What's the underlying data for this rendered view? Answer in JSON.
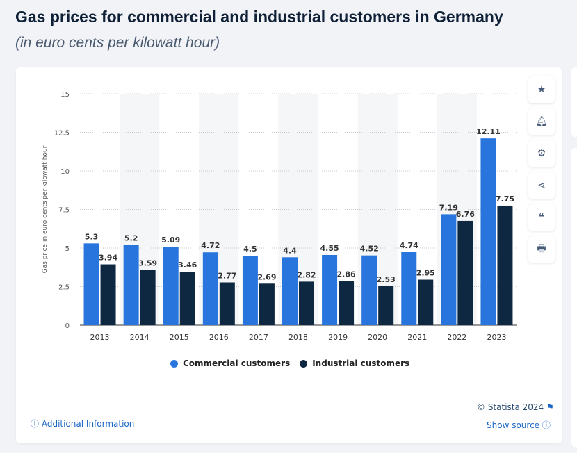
{
  "header": {
    "title": "Gas prices for commercial and industrial customers in Germany",
    "subtitle": "(in euro cents per kilowatt hour)"
  },
  "toolbar": [
    {
      "icon": "star-icon"
    },
    {
      "icon": "bell-icon"
    },
    {
      "icon": "gear-icon"
    },
    {
      "icon": "share-icon"
    },
    {
      "icon": "quote-icon"
    },
    {
      "icon": "print-icon"
    }
  ],
  "footer": {
    "additional_info": "Additional Information",
    "copyright": "© Statista 2024",
    "show_source": "Show source"
  },
  "chart_data": {
    "type": "bar",
    "ylabel": "Gas price in euro cents per kilowatt hour",
    "xlabel": "",
    "ylim": [
      0,
      15
    ],
    "yticks": [
      "0",
      "2.5",
      "5",
      "7.5",
      "10",
      "12.5",
      "15"
    ],
    "grid": true,
    "legend_position": "bottom",
    "categories": [
      "2013",
      "2014",
      "2015",
      "2016",
      "2017",
      "2018",
      "2019",
      "2020",
      "2021",
      "2022",
      "2023"
    ],
    "series": [
      {
        "name": "Commercial customers",
        "color": "#2876dd",
        "values": [
          5.3,
          5.2,
          5.09,
          4.72,
          4.5,
          4.4,
          4.55,
          4.52,
          4.74,
          7.19,
          12.11
        ],
        "labels": [
          "5.3",
          "5.2",
          "5.09",
          "4.72",
          "4.5",
          "4.4",
          "4.55",
          "4.52",
          "4.74",
          "7.19",
          "12.11"
        ]
      },
      {
        "name": "Industrial customers",
        "color": "#0f2842",
        "values": [
          3.94,
          3.59,
          3.46,
          2.77,
          2.69,
          2.82,
          2.86,
          2.53,
          2.95,
          6.76,
          7.75
        ],
        "labels": [
          "3.94",
          "3.59",
          "3.46",
          "2.77",
          "2.69",
          "2.82",
          "2.86",
          "2.53",
          "2.95",
          "6.76",
          "7.75"
        ]
      }
    ]
  }
}
